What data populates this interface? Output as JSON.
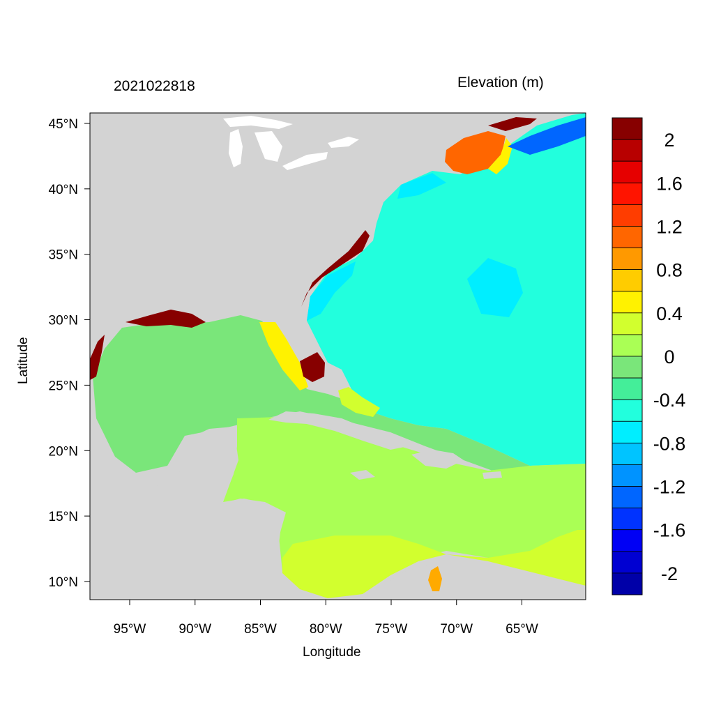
{
  "titles": {
    "left": "2021022818",
    "right": "Elevation (m)"
  },
  "axes": {
    "x_title": "Longitude",
    "y_title": "Latitude",
    "lon_ticks": [
      {
        "value": -95,
        "label": "95°W"
      },
      {
        "value": -90,
        "label": "90°W"
      },
      {
        "value": -85,
        "label": "85°W"
      },
      {
        "value": -80,
        "label": "80°W"
      },
      {
        "value": -75,
        "label": "75°W"
      },
      {
        "value": -70,
        "label": "70°W"
      },
      {
        "value": -65,
        "label": "65°W"
      }
    ],
    "lat_ticks": [
      {
        "value": 45,
        "label": "45°N"
      },
      {
        "value": 40,
        "label": "40°N"
      },
      {
        "value": 35,
        "label": "35°N"
      },
      {
        "value": 30,
        "label": "30°N"
      },
      {
        "value": 25,
        "label": "25°N"
      },
      {
        "value": 20,
        "label": "20°N"
      },
      {
        "value": 15,
        "label": "15°N"
      },
      {
        "value": 10,
        "label": "10°N"
      }
    ]
  },
  "colorbar": {
    "colors": [
      "#0000a8",
      "#0000d2",
      "#0000f5",
      "#0033ff",
      "#0066ff",
      "#0093ff",
      "#00c4ff",
      "#00eeff",
      "#22ffdd",
      "#44ee99",
      "#7ae67a",
      "#aaff55",
      "#d2ff2e",
      "#fff200",
      "#ffcc00",
      "#ff9900",
      "#ff6600",
      "#ff3d00",
      "#ff1400",
      "#e60000",
      "#b80000",
      "#870000"
    ],
    "labels": [
      "2",
      "1.6",
      "1.2",
      "0.8",
      "0.4",
      "0",
      "-0.4",
      "-0.8",
      "-1.2",
      "-1.6",
      "-2"
    ]
  },
  "colors": {
    "land": "#d3d3d3",
    "lakes": "#ffffff",
    "open_atlantic": "#22ffdd",
    "gulf_of_mexico": "#7ae67a",
    "caribbean": "#aaff55",
    "southern_caribbean": "#d2ff2e",
    "west_atlantic_low": "#00eeff",
    "gulf_of_maine_high": "#ff6600",
    "nova_scotia_low": "#0066ff",
    "coastal_surge": "#870000"
  }
}
